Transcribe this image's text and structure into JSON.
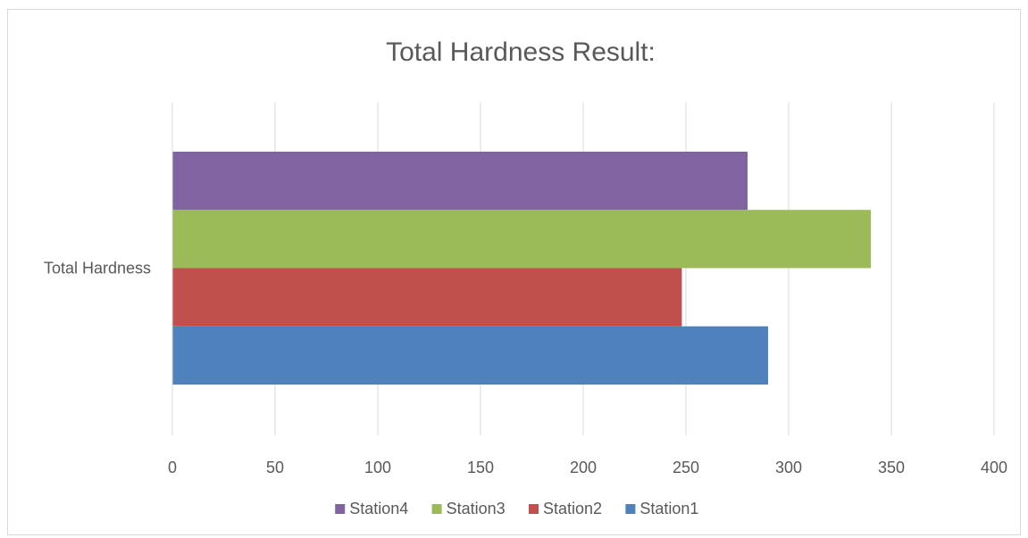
{
  "chart_data": {
    "type": "bar",
    "orientation": "horizontal",
    "title": "Total Hardness Result:",
    "categories": [
      "Total Hardness"
    ],
    "series": [
      {
        "name": "Station1",
        "values": [
          290
        ],
        "color": "#4F81BD"
      },
      {
        "name": "Station2",
        "values": [
          248
        ],
        "color": "#C0504D"
      },
      {
        "name": "Station3",
        "values": [
          340
        ],
        "color": "#9BBB59"
      },
      {
        "name": "Station4",
        "values": [
          280
        ],
        "color": "#8064A2"
      }
    ],
    "xlim": [
      0,
      400
    ],
    "xticks": [
      "0",
      "50",
      "100",
      "150",
      "200",
      "250",
      "300",
      "350",
      "400"
    ],
    "grid": true,
    "legend_position": "bottom",
    "legend_order": [
      "Station4",
      "Station3",
      "Station2",
      "Station1"
    ]
  }
}
